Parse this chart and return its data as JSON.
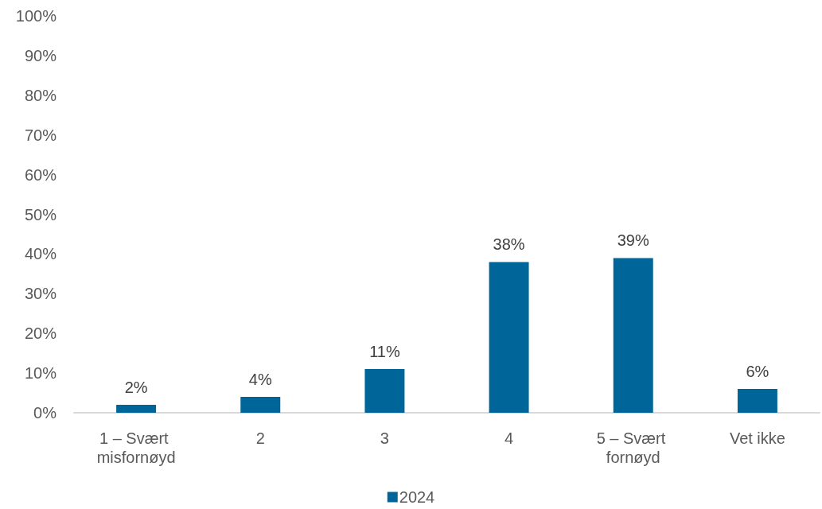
{
  "chart_data": {
    "type": "bar",
    "categories": [
      "1 – Svært misfornøyd",
      "2",
      "3",
      "4",
      "5 – Svært fornøyd",
      "Vet ikke"
    ],
    "series": [
      {
        "name": "2024",
        "color": "#006699",
        "values": [
          2,
          4,
          11,
          38,
          39,
          6
        ],
        "value_labels": [
          "2%",
          "4%",
          "11%",
          "38%",
          "39%",
          "6%"
        ]
      }
    ],
    "ylim": [
      0,
      100
    ],
    "yticks": [
      {
        "value": 0,
        "label": "0%"
      },
      {
        "value": 10,
        "label": "10%"
      },
      {
        "value": 20,
        "label": "20%"
      },
      {
        "value": 30,
        "label": "30%"
      },
      {
        "value": 40,
        "label": "40%"
      },
      {
        "value": 50,
        "label": "50%"
      },
      {
        "value": 60,
        "label": "60%"
      },
      {
        "value": 70,
        "label": "70%"
      },
      {
        "value": 80,
        "label": "80%"
      },
      {
        "value": 90,
        "label": "90%"
      },
      {
        "value": 100,
        "label": "100%"
      }
    ],
    "grid": false,
    "legend": "bottom"
  }
}
